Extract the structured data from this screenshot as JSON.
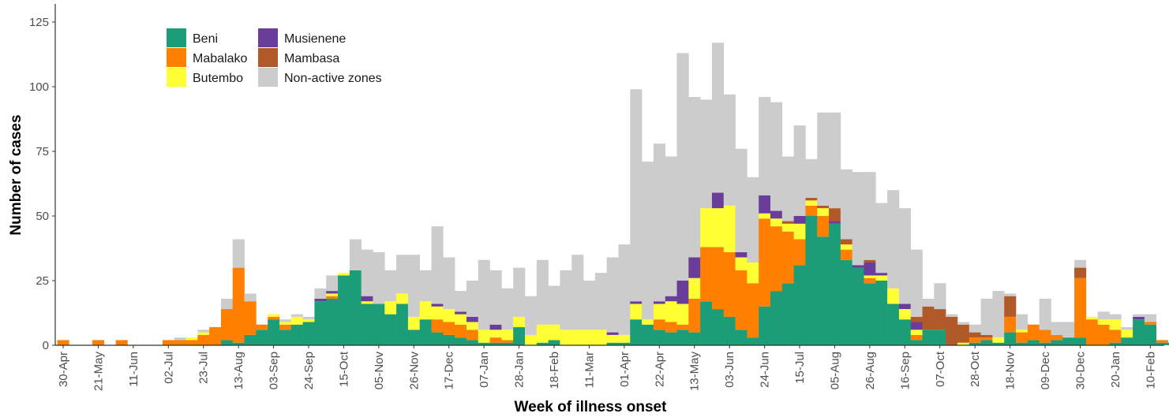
{
  "chart_data": {
    "type": "bar",
    "stacked": true,
    "title": "",
    "xlabel": "Week of illness onset",
    "ylabel": "Number of cases",
    "ylim": [
      0,
      132
    ],
    "yticks": [
      0,
      25,
      50,
      75,
      100,
      125
    ],
    "grid": false,
    "legend_position": "top-left",
    "x_tick_labels": [
      "30-Apr",
      "21-May",
      "11-Jun",
      "02-Jul",
      "23-Jul",
      "13-Aug",
      "03-Sep",
      "24-Sep",
      "15-Oct",
      "05-Nov",
      "26-Nov",
      "17-Dec",
      "07-Jan",
      "28-Jan",
      "18-Feb",
      "11-Mar",
      "01-Apr",
      "22-Apr",
      "13-May",
      "03-Jun",
      "24-Jun",
      "15-Jul",
      "05-Aug",
      "26-Aug",
      "16-Sep",
      "07-Oct",
      "28-Oct",
      "18-Nov",
      "09-Dec",
      "30-Dec",
      "20-Jan",
      "10-Feb"
    ],
    "weeks_per_tick": 3,
    "series": [
      {
        "name": "Beni",
        "color": "#1b9e77",
        "values": [
          0,
          0,
          0,
          0,
          0,
          0,
          0,
          0,
          0,
          0,
          0,
          0,
          0,
          0,
          2,
          1,
          4,
          6,
          10,
          6,
          8,
          9,
          17,
          18,
          27,
          29,
          16,
          16,
          12,
          16,
          6,
          10,
          5,
          4,
          3,
          2,
          1,
          1,
          1,
          7,
          0,
          1,
          2,
          0,
          0,
          0,
          0,
          1,
          1,
          10,
          8,
          6,
          5,
          6,
          5,
          17,
          14,
          11,
          6,
          3,
          15,
          21,
          24,
          31,
          50,
          42,
          47,
          33,
          30,
          24,
          25,
          16,
          10,
          2,
          6,
          6,
          0,
          0,
          1,
          2,
          1,
          5,
          1,
          2,
          1,
          2,
          3,
          3,
          0,
          0,
          1,
          3,
          10,
          8,
          1,
          1
        ]
      },
      {
        "name": "Mabalako",
        "color": "#ff7f00",
        "values": [
          2,
          0,
          0,
          2,
          0,
          2,
          0,
          0,
          0,
          2,
          2,
          2,
          4,
          7,
          12,
          29,
          13,
          2,
          1,
          2,
          0,
          0,
          0,
          1,
          0,
          0,
          0,
          0,
          0,
          0,
          0,
          0,
          5,
          5,
          5,
          4,
          0,
          2,
          1,
          0,
          0,
          0,
          0,
          0,
          0,
          0,
          0,
          0,
          0,
          0,
          0,
          4,
          4,
          2,
          13,
          21,
          24,
          25,
          23,
          21,
          34,
          25,
          20,
          10,
          4,
          8,
          0,
          4,
          0,
          2,
          0,
          0,
          0,
          2,
          0,
          0,
          0,
          0,
          2,
          1,
          0,
          6,
          4,
          6,
          5,
          2,
          0,
          23,
          10,
          8,
          5,
          0,
          0,
          1,
          1,
          0
        ]
      },
      {
        "name": "Butembo",
        "color": "#ffff33",
        "values": [
          0,
          0,
          0,
          0,
          0,
          0,
          0,
          0,
          0,
          0,
          0,
          1,
          1,
          0,
          0,
          0,
          0,
          0,
          1,
          1,
          3,
          1,
          0,
          1,
          1,
          0,
          1,
          0,
          5,
          4,
          5,
          7,
          5,
          5,
          4,
          3,
          5,
          3,
          4,
          4,
          4,
          7,
          6,
          6,
          6,
          6,
          6,
          3,
          3,
          6,
          2,
          6,
          8,
          8,
          8,
          15,
          15,
          18,
          5,
          8,
          2,
          3,
          3,
          6,
          2,
          3,
          0,
          2,
          0,
          1,
          2,
          6,
          4,
          2,
          0,
          0,
          0,
          1,
          0,
          0,
          2,
          0,
          1,
          0,
          0,
          0,
          0,
          0,
          1,
          2,
          4,
          3,
          0,
          0,
          0,
          0
        ]
      },
      {
        "name": "Musienene",
        "color": "#6a3d9a",
        "values": [
          0,
          0,
          0,
          0,
          0,
          0,
          0,
          0,
          0,
          0,
          0,
          0,
          0,
          0,
          0,
          0,
          0,
          0,
          0,
          0,
          0,
          0,
          1,
          1,
          0,
          0,
          2,
          0,
          0,
          0,
          0,
          0,
          1,
          0,
          1,
          2,
          0,
          2,
          0,
          0,
          0,
          0,
          0,
          0,
          0,
          0,
          0,
          1,
          0,
          1,
          0,
          1,
          2,
          9,
          8,
          0,
          6,
          0,
          2,
          0,
          7,
          3,
          0,
          3,
          0,
          0,
          1,
          0,
          1,
          5,
          1,
          0,
          2,
          3,
          0,
          0,
          0,
          0,
          0,
          0,
          0,
          0,
          0,
          0,
          0,
          0,
          0,
          0,
          0,
          0,
          0,
          0,
          1,
          0,
          0,
          0
        ]
      },
      {
        "name": "Mambasa",
        "color": "#b15928",
        "values": [
          0,
          0,
          0,
          0,
          0,
          0,
          0,
          0,
          0,
          0,
          0,
          0,
          0,
          0,
          0,
          0,
          0,
          0,
          0,
          0,
          0,
          0,
          0,
          0,
          0,
          0,
          0,
          0,
          0,
          0,
          0,
          0,
          0,
          0,
          0,
          0,
          0,
          0,
          0,
          0,
          0,
          0,
          0,
          0,
          0,
          0,
          0,
          0,
          0,
          0,
          0,
          0,
          0,
          0,
          0,
          0,
          0,
          0,
          0,
          0,
          0,
          0,
          1,
          0,
          1,
          1,
          5,
          2,
          0,
          1,
          0,
          0,
          0,
          2,
          9,
          8,
          11,
          7,
          2,
          1,
          0,
          8,
          0,
          0,
          0,
          0,
          0,
          4,
          0,
          0,
          0,
          0,
          0,
          0,
          0,
          0
        ]
      },
      {
        "name": "Non-active zones",
        "color": "#cccccc",
        "values": [
          0,
          0,
          0,
          0,
          0,
          0,
          0,
          0,
          0,
          0,
          1,
          0,
          1,
          0,
          4,
          11,
          3,
          0,
          0,
          1,
          1,
          1,
          4,
          6,
          0,
          12,
          18,
          20,
          12,
          15,
          24,
          12,
          30,
          20,
          8,
          14,
          27,
          21,
          16,
          19,
          15,
          25,
          15,
          23,
          29,
          19,
          22,
          29,
          35,
          82,
          61,
          61,
          54,
          88,
          62,
          42,
          58,
          43,
          40,
          33,
          38,
          42,
          25,
          35,
          15,
          36,
          37,
          27,
          36,
          34,
          27,
          38,
          37,
          26,
          3,
          10,
          1,
          1,
          3,
          14,
          18,
          1,
          6,
          0,
          12,
          5,
          6,
          3,
          0,
          3,
          2,
          1,
          1,
          3,
          0,
          0
        ]
      }
    ]
  },
  "legend": {
    "items": [
      {
        "label": "Beni",
        "color": "#1b9e77"
      },
      {
        "label": "Mabalako",
        "color": "#ff7f00"
      },
      {
        "label": "Butembo",
        "color": "#ffff33"
      },
      {
        "label": "Musienene",
        "color": "#6a3d9a"
      },
      {
        "label": "Mambasa",
        "color": "#b15928"
      },
      {
        "label": "Non-active zones",
        "color": "#cccccc"
      }
    ]
  }
}
